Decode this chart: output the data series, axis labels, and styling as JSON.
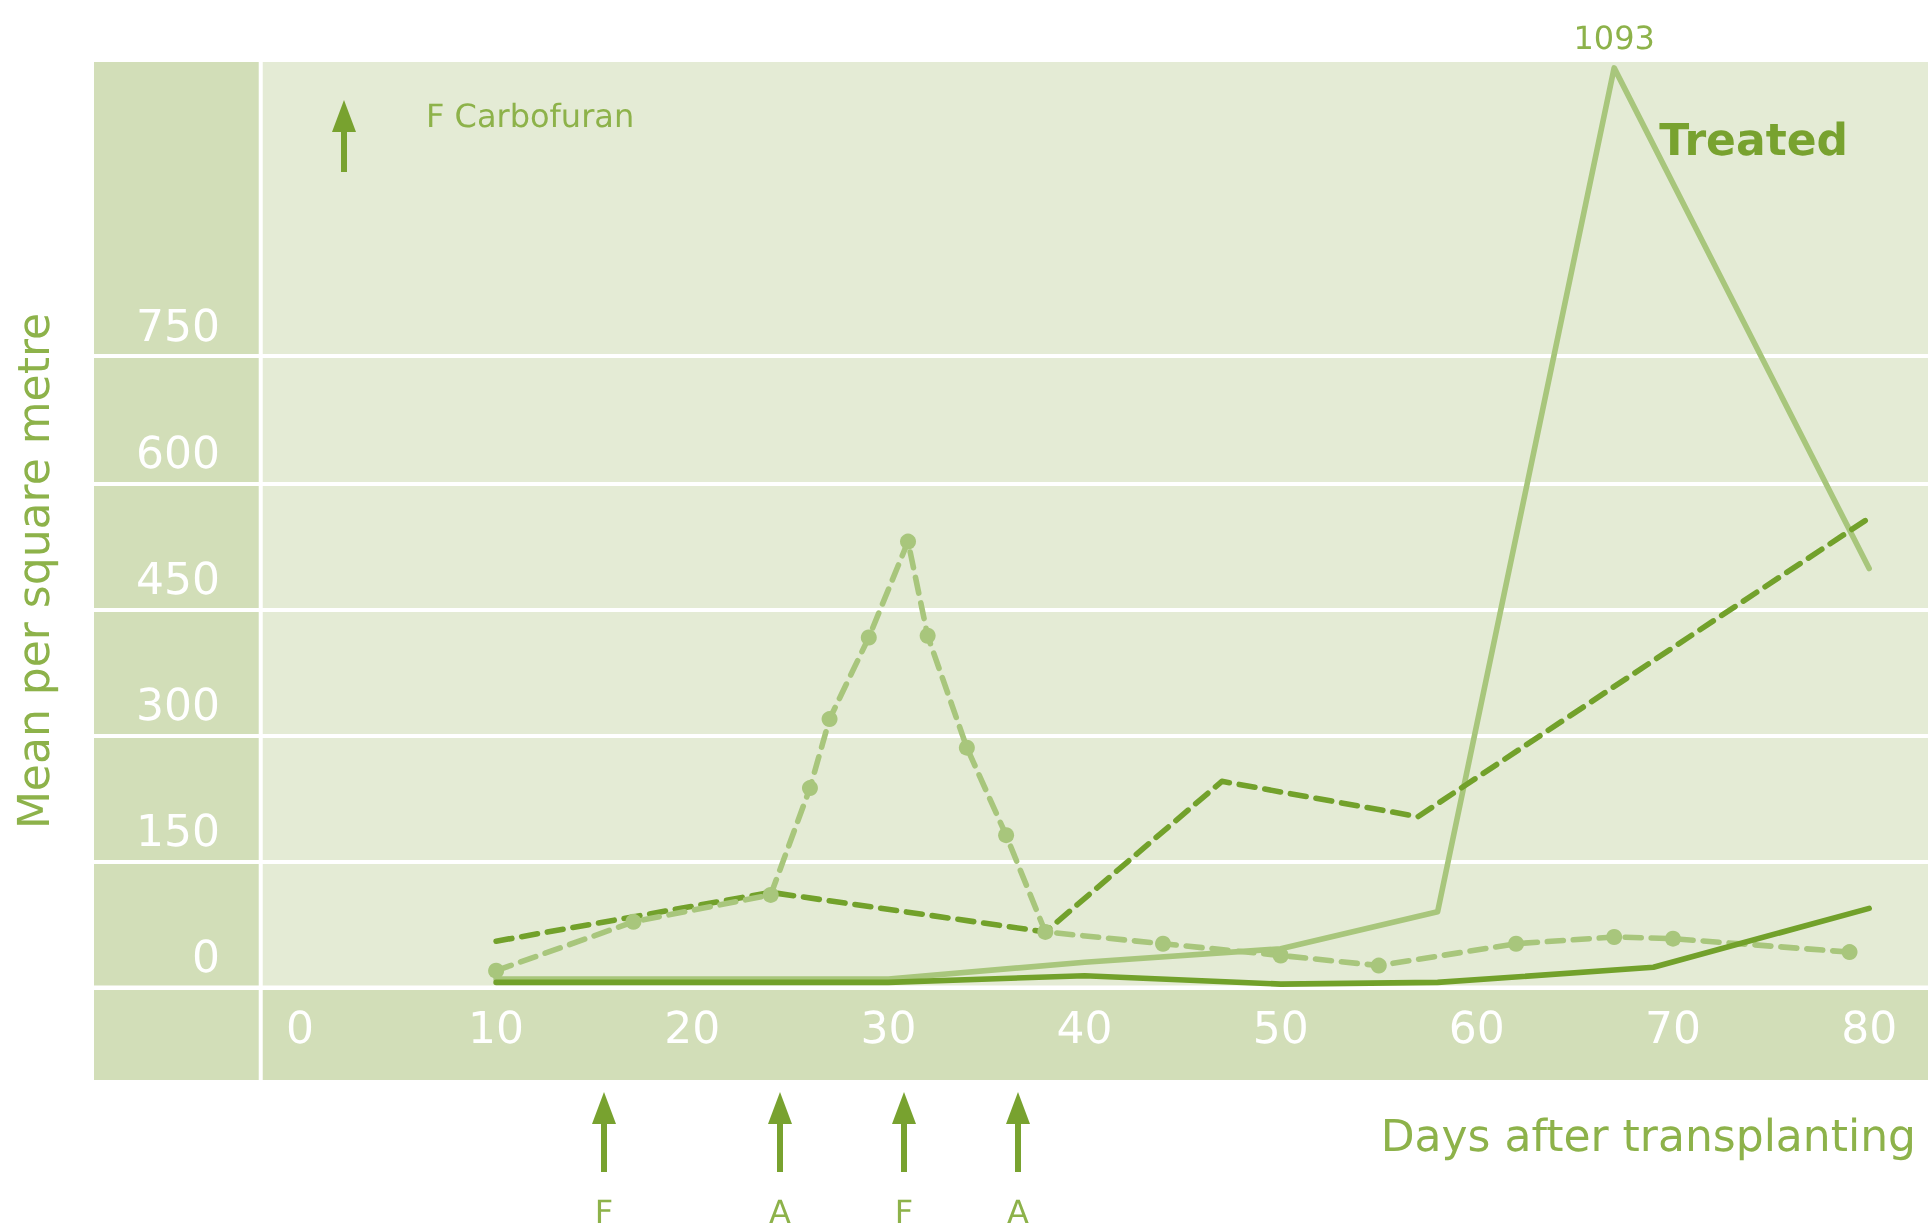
{
  "chart_data": {
    "type": "line",
    "xlabel": "Days after transplanting",
    "ylabel": "Mean per square metre",
    "xlim": [
      -10.5,
      83
    ],
    "ylim": [
      -110,
      1100
    ],
    "xticks": [
      0,
      10,
      20,
      30,
      40,
      50,
      60,
      70,
      80
    ],
    "yticks": [
      0,
      150,
      300,
      450,
      600,
      750
    ],
    "grid": "y",
    "bands": [
      {
        "axis": "y",
        "from": -110,
        "to": 0,
        "color": "#d2deb8"
      },
      {
        "axis": "x",
        "from": -10.5,
        "to": -2,
        "color": "#d2deb8"
      }
    ],
    "series": [
      {
        "color": "#a8c67c",
        "line_style": "solid",
        "marker": "none",
        "x": [
          10,
          30,
          40,
          50,
          58,
          67,
          80
        ],
        "values": [
          10,
          10,
          30,
          46,
          90,
          1093,
          498
        ]
      },
      {
        "color": "#72a12b",
        "line_style": "dashed",
        "marker": "none",
        "x": [
          10,
          24,
          38,
          47,
          57,
          70,
          80
        ],
        "values": [
          55,
          113,
          66,
          245,
          203,
          404,
          558
        ]
      },
      {
        "color": "#a8c67c",
        "line_style": "dashed",
        "marker": "circle",
        "x": [
          10,
          17,
          24,
          26,
          27,
          29,
          31,
          32,
          34,
          36,
          38,
          44,
          50,
          55,
          62,
          67,
          70,
          79
        ],
        "values": [
          20,
          78,
          110,
          237,
          319,
          416,
          530,
          418,
          285,
          181,
          66,
          52,
          38,
          26,
          52,
          60,
          58,
          42
        ]
      },
      {
        "color": "#72a12b",
        "line_style": "solid",
        "marker": "none",
        "x": [
          10,
          24,
          30,
          40,
          50,
          58,
          69,
          80
        ],
        "values": [
          6,
          6,
          6,
          14,
          4,
          6,
          24,
          94
        ]
      }
    ],
    "annotations": [
      "F Carbofuran",
      "Treated",
      "1093",
      "F",
      "A",
      "F",
      "A"
    ]
  }
}
